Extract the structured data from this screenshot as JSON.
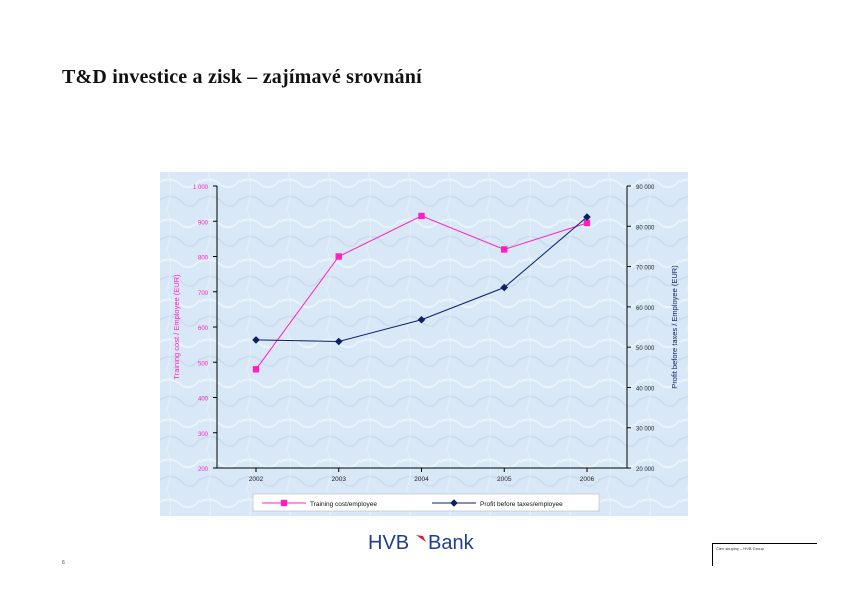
{
  "slide": {
    "title": "T&D investice a zisk – zajímavé srovnání",
    "logo_text_left": "HVB",
    "logo_text_right": "Bank",
    "footer_text": "Člen skupiny – HVB Group",
    "page_number": "6"
  },
  "chart_data": {
    "type": "line",
    "categories": [
      "2002",
      "2003",
      "2004",
      "2005",
      "2006"
    ],
    "series": [
      {
        "name": "Training cost/employee",
        "axis": "left",
        "color": "#ff1fbf",
        "marker": "square",
        "values": [
          480,
          800,
          915,
          820,
          895
        ]
      },
      {
        "name": "Profit before taxes/employee",
        "axis": "right",
        "color": "#0d1f66",
        "marker": "diamond",
        "values": [
          51800,
          51400,
          56800,
          64800,
          82300
        ]
      }
    ],
    "ylabel": "Training cost / Employee (EUR)",
    "y2label": "Profit before taxes / Employee (EUR)",
    "ylim": [
      200,
      1000
    ],
    "y2lim": [
      20000,
      90000
    ],
    "yticks": [
      "200",
      "300",
      "400",
      "500",
      "600",
      "700",
      "800",
      "900",
      "1 000"
    ],
    "y2ticks": [
      "20 000",
      "30 000",
      "40 000",
      "50 000",
      "60 000",
      "70 000",
      "80 000",
      "90 000"
    ],
    "ylabel_color": "#ff1fbf",
    "y2label_color": "#0d1f66",
    "background_color": "#d6e6f6",
    "legend_position": "bottom"
  }
}
